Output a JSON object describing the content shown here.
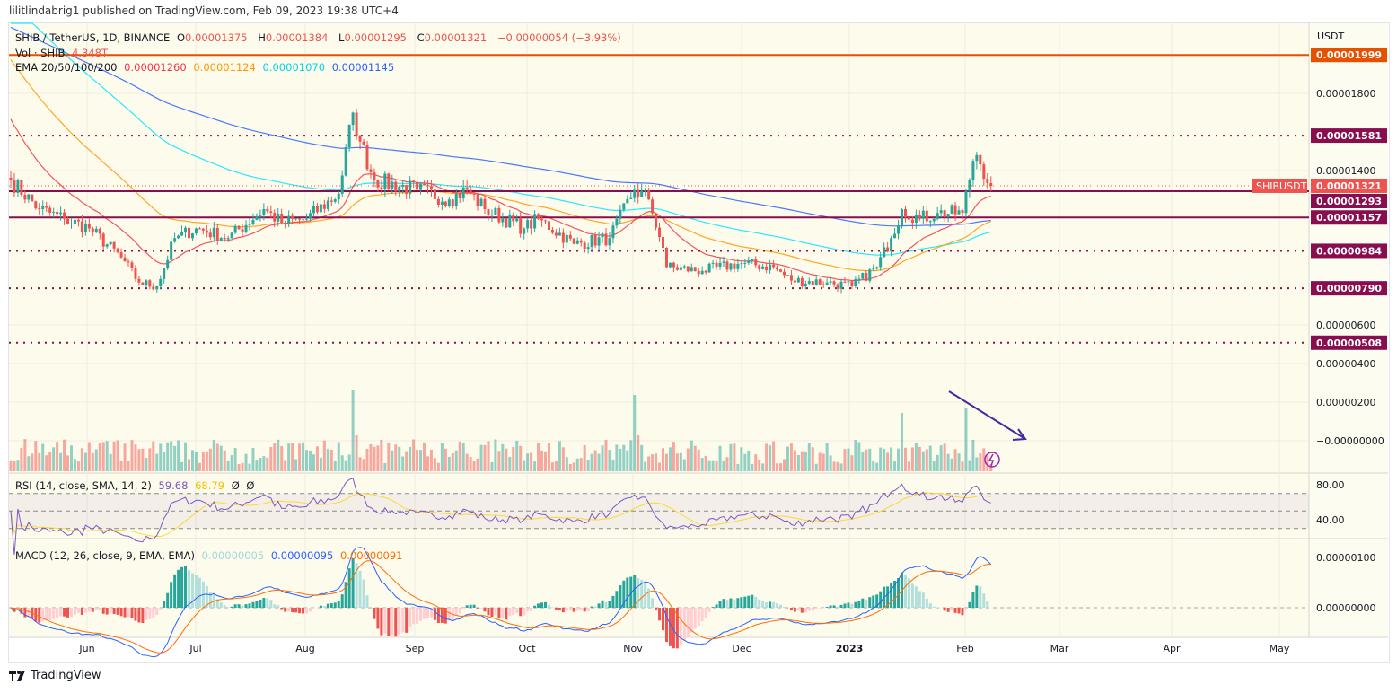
{
  "header": {
    "published": "lilitlindabrig1 published on TradingView.com, Feb 09, 2023 19:38 UTC+4"
  },
  "legend": {
    "symbol": "SHIB / TetherUS, 1D, BINANCE",
    "o_label": "O",
    "open": "0.00001375",
    "h_label": "H",
    "high": "0.00001384",
    "l_label": "L",
    "low": "0.00001295",
    "c_label": "C",
    "close": "0.00001321",
    "change": "−0.00000054 (−3.93%)",
    "vol_label": "Vol · SHIB",
    "vol_value": "4.348T",
    "ema_label": "EMA 20/50/100/200",
    "ema20": "0.00001260",
    "ema50": "0.00001124",
    "ema100": "0.00001070",
    "ema200": "0.00001145",
    "rsi_label": "RSI (14, close, SMA, 14, 2)",
    "rsi": "59.68",
    "rsi_ma": "68.79",
    "rsi_extra1": "Ø",
    "rsi_extra2": "Ø",
    "macd_label": "MACD (12, 26, close, 9, EMA, EMA)",
    "macd_hist": "0.00000005",
    "macd": "0.00000095",
    "macd_signal": "0.00000091"
  },
  "colors": {
    "up": "#26a69a",
    "down": "#ef5350",
    "ema20": "#f23645",
    "ema50": "#ff9800",
    "ema100": "#00e5ff",
    "ema200": "#2962ff",
    "rsi": "#7e57c2",
    "rsi_ma": "#fdd835",
    "level": "#880e4f",
    "resistance": "#e65100",
    "macd": "#2962ff",
    "signal": "#ff6d00",
    "arrow": "#4527a0",
    "background": "#fdfbec"
  },
  "chart_data": {
    "type": "candlestick",
    "price_axis": {
      "unit": "USDT",
      "ticks": [
        "0.00001800",
        "0.00001400",
        "0.00000600",
        "0.00000400",
        "0.00000200",
        "−0.00000000"
      ]
    },
    "time_axis": {
      "ticks": [
        "Jun",
        "Jul",
        "Aug",
        "Sep",
        "Oct",
        "Nov",
        "Dec",
        "2023",
        "Feb",
        "Mar",
        "Apr",
        "May"
      ]
    },
    "symbol_tag": "SHIBUSDT",
    "last_price": "0.00001321",
    "levels": [
      {
        "value": "0.00001999",
        "style": "solid",
        "kind": "resistance"
      },
      {
        "value": "0.00001581",
        "style": "dotted"
      },
      {
        "value": "0.00001293",
        "style": "solid"
      },
      {
        "value": "0.00001157",
        "style": "solid"
      },
      {
        "value": "0.00000984",
        "style": "dotted"
      },
      {
        "value": "0.00000790",
        "style": "dotted"
      },
      {
        "value": "0.00000508",
        "style": "dotted"
      }
    ],
    "approx_closes": [
      [
        "2022-05-10",
        13.5
      ],
      [
        "2022-05-18",
        12.0
      ],
      [
        "2022-05-25",
        11.5
      ],
      [
        "2022-06-01",
        11.0
      ],
      [
        "2022-06-10",
        9.5
      ],
      [
        "2022-06-15",
        8.2
      ],
      [
        "2022-06-20",
        8.0
      ],
      [
        "2022-06-25",
        10.5
      ],
      [
        "2022-07-01",
        11.0
      ],
      [
        "2022-07-10",
        10.5
      ],
      [
        "2022-07-20",
        12.0
      ],
      [
        "2022-07-25",
        11.3
      ],
      [
        "2022-08-01",
        11.5
      ],
      [
        "2022-08-10",
        12.8
      ],
      [
        "2022-08-14",
        17.0
      ],
      [
        "2022-08-16",
        15.5
      ],
      [
        "2022-08-20",
        13.5
      ],
      [
        "2022-09-01",
        13.0
      ],
      [
        "2022-09-10",
        12.5
      ],
      [
        "2022-09-15",
        13.0
      ],
      [
        "2022-09-20",
        12.0
      ],
      [
        "2022-10-01",
        11.0
      ],
      [
        "2022-10-05",
        11.5
      ],
      [
        "2022-10-15",
        10.2
      ],
      [
        "2022-10-25",
        10.5
      ],
      [
        "2022-11-01",
        13.0
      ],
      [
        "2022-11-05",
        12.5
      ],
      [
        "2022-11-09",
        10.0
      ],
      [
        "2022-11-10",
        9.0
      ],
      [
        "2022-11-20",
        8.8
      ],
      [
        "2022-12-01",
        9.2
      ],
      [
        "2022-12-10",
        9.0
      ],
      [
        "2022-12-15",
        8.3
      ],
      [
        "2022-12-25",
        8.2
      ],
      [
        "2023-01-01",
        8.0
      ],
      [
        "2023-01-08",
        9.0
      ],
      [
        "2023-01-12",
        10.5
      ],
      [
        "2023-01-15",
        12.0
      ],
      [
        "2023-01-20",
        11.5
      ],
      [
        "2023-01-25",
        11.8
      ],
      [
        "2023-02-01",
        11.8
      ],
      [
        "2023-02-04",
        14.5
      ],
      [
        "2023-02-05",
        14.8
      ],
      [
        "2023-02-09",
        13.21
      ]
    ],
    "price_scale": "1e-6 USDT",
    "rsi_axis": {
      "ticks": [
        "80.00",
        "40.00"
      ],
      "bands": [
        30,
        50,
        70
      ]
    },
    "macd_axis": {
      "ticks": [
        "0.00000100",
        "0.00000000"
      ]
    },
    "grid": true
  },
  "footer": {
    "brand": "TradingView"
  }
}
